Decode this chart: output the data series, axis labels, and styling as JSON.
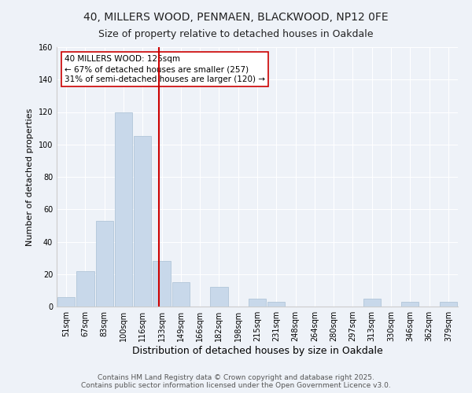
{
  "title": "40, MILLERS WOOD, PENMAEN, BLACKWOOD, NP12 0FE",
  "subtitle": "Size of property relative to detached houses in Oakdale",
  "xlabel": "Distribution of detached houses by size in Oakdale",
  "ylabel": "Number of detached properties",
  "bar_color": "#c8d8ea",
  "bar_edge_color": "#a8bfd4",
  "background_color": "#eef2f8",
  "grid_color": "#ffffff",
  "categories": [
    "51sqm",
    "67sqm",
    "83sqm",
    "100sqm",
    "116sqm",
    "133sqm",
    "149sqm",
    "166sqm",
    "182sqm",
    "198sqm",
    "215sqm",
    "231sqm",
    "248sqm",
    "264sqm",
    "280sqm",
    "297sqm",
    "313sqm",
    "330sqm",
    "346sqm",
    "362sqm",
    "379sqm"
  ],
  "values": [
    6,
    22,
    53,
    120,
    105,
    28,
    15,
    0,
    12,
    0,
    5,
    3,
    0,
    0,
    0,
    0,
    5,
    0,
    3,
    0,
    3
  ],
  "vline_x": 4.85,
  "vline_color": "#cc0000",
  "annotation_text": "40 MILLERS WOOD: 125sqm\n← 67% of detached houses are smaller (257)\n31% of semi-detached houses are larger (120) →",
  "annotation_box_color": "#ffffff",
  "annotation_box_edge_color": "#cc0000",
  "ylim": [
    0,
    160
  ],
  "yticks": [
    0,
    20,
    40,
    60,
    80,
    100,
    120,
    140,
    160
  ],
  "footer": "Contains HM Land Registry data © Crown copyright and database right 2025.\nContains public sector information licensed under the Open Government Licence v3.0.",
  "title_fontsize": 10,
  "subtitle_fontsize": 9,
  "xlabel_fontsize": 9,
  "ylabel_fontsize": 8,
  "tick_fontsize": 7,
  "annotation_fontsize": 7.5,
  "footer_fontsize": 6.5
}
